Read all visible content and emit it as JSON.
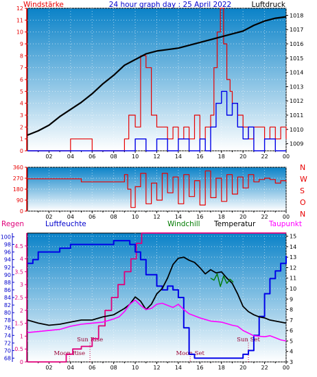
{
  "header": {
    "left": "Windstärke",
    "center": "24 hour graph day : 25 April 2022",
    "right": "Luftdruck"
  },
  "legend": {
    "regen": "Regen",
    "luftfeuchte": "Luftfeuchte",
    "windchill": "Windchill",
    "temperatur": "Temperatur",
    "taupunkt": "Taupunkt"
  },
  "wind_dir_labels": [
    "N",
    "W",
    "S",
    "O",
    "N"
  ],
  "colors": {
    "red": "#e80000",
    "blue": "#0000e8",
    "black": "#000000",
    "green": "#007a00",
    "magenta": "#ff00ff",
    "deep_magenta": "#e0007a",
    "axis_left": "#e80000",
    "axis_humidity": "#0000cc",
    "axis_right": "#000000",
    "panel_top": "#0a82c8",
    "panel_bottom": "#ffffff"
  },
  "chart_data": [
    {
      "id": "wind-pressure",
      "type": "line",
      "title": "24 hour graph day : 25 April 2022",
      "left_axis": {
        "label": "Windstärke",
        "range": [
          0,
          12
        ],
        "ticks": [
          "0",
          "1",
          "2",
          "3",
          "4",
          "5",
          "6",
          "7",
          "8",
          "9",
          "10",
          "11",
          "12"
        ]
      },
      "right_axis": {
        "label": "Luftdruck",
        "range": [
          1008.5,
          1018.5
        ],
        "ticks": [
          "1009",
          "1010",
          "1011",
          "1012",
          "1013",
          "1014",
          "1015",
          "1016",
          "1017",
          "1018"
        ]
      },
      "x_axis": {
        "range": [
          0,
          24
        ],
        "ticks": [
          "02",
          "04",
          "06",
          "08",
          "10",
          "12",
          "14",
          "16",
          "18",
          "20",
          "22",
          "00"
        ]
      },
      "series": [
        {
          "name": "Luftdruck",
          "color": "black",
          "x": [
            0,
            1,
            2,
            3,
            4,
            5,
            6,
            7,
            8,
            9,
            10,
            11,
            12,
            13,
            14,
            15,
            16,
            17,
            18,
            19,
            20,
            21,
            22,
            23,
            24
          ],
          "y": [
            1009.6,
            1009.9,
            1010.3,
            1010.9,
            1011.4,
            1011.9,
            1012.5,
            1013.2,
            1013.8,
            1014.5,
            1014.9,
            1015.3,
            1015.5,
            1015.6,
            1015.7,
            1015.9,
            1016.1,
            1016.3,
            1016.5,
            1016.7,
            1016.9,
            1017.3,
            1017.6,
            1017.8,
            1017.9
          ]
        },
        {
          "name": "Windböen",
          "color": "red",
          "x": [
            0,
            2,
            4,
            6,
            8,
            9,
            9.4,
            10,
            10.5,
            11,
            11.5,
            12,
            12.5,
            13,
            13.5,
            14,
            14.5,
            15,
            15.5,
            16,
            16.5,
            17,
            17.3,
            17.6,
            17.9,
            18.2,
            18.5,
            18.8,
            19,
            19.5,
            20,
            20.5,
            21,
            21.5,
            22,
            22.5,
            23,
            23.5,
            24
          ],
          "y": [
            0,
            0,
            1,
            0,
            0,
            1,
            3,
            2,
            8,
            7,
            3,
            2,
            2,
            1,
            2,
            1,
            2,
            1,
            3,
            1,
            2,
            3,
            7,
            10,
            12,
            9,
            6,
            5,
            4,
            3,
            2,
            1,
            2,
            2,
            1,
            2,
            1,
            2,
            1
          ]
        },
        {
          "name": "Windmittel",
          "color": "blue",
          "x": [
            0,
            9,
            10,
            11,
            12,
            13,
            14,
            15,
            16,
            16.5,
            17,
            17.5,
            18,
            18.5,
            19,
            19.5,
            20,
            20.5,
            21,
            22,
            23,
            24
          ],
          "y": [
            0,
            0,
            1,
            0,
            1,
            0,
            1,
            0,
            1,
            0,
            2,
            4,
            5,
            3,
            4,
            2,
            1,
            2,
            0,
            1,
            0,
            0
          ]
        }
      ]
    },
    {
      "id": "wind-direction",
      "type": "line",
      "left_axis": {
        "range": [
          0,
          360
        ],
        "ticks": [
          "0",
          "90",
          "180",
          "270",
          "360"
        ]
      },
      "right_labels": [
        "N",
        "W",
        "S",
        "O",
        "N"
      ],
      "x_axis": {
        "range": [
          0,
          24
        ],
        "ticks": [
          "02",
          "04",
          "06",
          "08",
          "10",
          "12",
          "14",
          "16",
          "18",
          "20",
          "22",
          "00"
        ]
      },
      "series": [
        {
          "name": "Windrichtung",
          "color": "red",
          "x": [
            0,
            4.5,
            5,
            8.5,
            9,
            9.3,
            9.6,
            10,
            10.5,
            11,
            11.5,
            12,
            12.5,
            13,
            13.5,
            14,
            14.5,
            15,
            15.5,
            16,
            16.5,
            17,
            17.5,
            18,
            18.5,
            19,
            19.5,
            20,
            20.5,
            21,
            21.5,
            22,
            22.5,
            23,
            23.5,
            24
          ],
          "y": [
            265,
            265,
            240,
            240,
            300,
            180,
            30,
            200,
            310,
            60,
            230,
            90,
            310,
            150,
            280,
            60,
            300,
            120,
            250,
            50,
            330,
            110,
            270,
            80,
            300,
            140,
            280,
            190,
            300,
            240,
            260,
            270,
            260,
            230,
            250,
            240
          ]
        }
      ]
    },
    {
      "id": "climate",
      "type": "line",
      "left_axis_regen": {
        "label": "Regen",
        "range": [
          0,
          5
        ],
        "ticks": [
          "0",
          "0.5",
          "1",
          "1.5",
          "2",
          "2.5",
          "3",
          "3.5",
          "4",
          "4.5"
        ]
      },
      "left_axis_humidity": {
        "label": "Luftfeuchte",
        "range": [
          67,
          101
        ],
        "ticks": [
          "68",
          "70",
          "72",
          "74",
          "76",
          "78",
          "80",
          "82",
          "84",
          "86",
          "88",
          "90",
          "92",
          "94",
          "96",
          "98",
          "100"
        ]
      },
      "right_axis": {
        "label": "Temperatur",
        "range": [
          3,
          15.3
        ],
        "ticks": [
          "3",
          "4",
          "5",
          "6",
          "7",
          "8",
          "9",
          "10",
          "11",
          "12",
          "13",
          "14",
          "15"
        ]
      },
      "x_axis": {
        "range": [
          0,
          24
        ],
        "ticks": [
          "02",
          "04",
          "06",
          "08",
          "10",
          "12",
          "14",
          "16",
          "18",
          "20",
          "22",
          "00"
        ]
      },
      "annotations": [
        {
          "label": "Sun Rise",
          "x": 5.8
        },
        {
          "label": "Moon Rise",
          "x": 3.9
        },
        {
          "label": "Moon Set",
          "x": 15.1
        },
        {
          "label": "Sun Set",
          "x": 20.5
        }
      ],
      "series": [
        {
          "name": "Regen",
          "color": "deep_magenta",
          "axis": "regen",
          "x": [
            0,
            3,
            3.6,
            4.2,
            5,
            6,
            6.6,
            7.2,
            7.8,
            8.4,
            9,
            9.6,
            10.1,
            10.6,
            11.2,
            24
          ],
          "y": [
            0,
            0,
            0.3,
            0.5,
            0.6,
            0.9,
            1.4,
            2.0,
            2.5,
            3.0,
            3.5,
            4.0,
            4.6,
            5.0,
            5.0,
            5.0
          ]
        },
        {
          "name": "Luftfeuchte",
          "color": "blue",
          "axis": "humidity",
          "x": [
            0,
            0.5,
            1,
            2,
            3,
            4,
            5,
            6,
            7,
            8,
            8.5,
            9,
            9.5,
            10,
            10.5,
            11,
            12,
            12.5,
            13,
            13.5,
            14,
            14.5,
            15,
            15.5,
            16,
            17,
            18,
            19,
            19.5,
            20,
            20.5,
            21,
            21.5,
            22,
            22.5,
            23,
            23.5,
            24
          ],
          "y": [
            93,
            94,
            96,
            96,
            97,
            98,
            98,
            98,
            98,
            99,
            99,
            99,
            98,
            96,
            94,
            90,
            87,
            86,
            87,
            86,
            84,
            76,
            69,
            68,
            68,
            68,
            68,
            68,
            68,
            69,
            70,
            74,
            79,
            85,
            89,
            91,
            93,
            95
          ]
        },
        {
          "name": "Temperatur",
          "color": "black",
          "axis": "temp",
          "x": [
            0,
            1,
            2,
            3,
            4,
            5,
            6,
            7,
            8,
            8.5,
            9,
            9.5,
            10,
            10.5,
            11,
            11.5,
            12,
            12.5,
            13,
            13.5,
            14,
            14.5,
            15,
            15.5,
            16,
            16.5,
            17,
            17.5,
            18,
            18.5,
            19,
            19.5,
            20,
            20.5,
            21,
            21.5,
            22,
            22.5,
            23,
            23.5,
            24
          ],
          "y": [
            7.0,
            6.7,
            6.5,
            6.6,
            6.8,
            7.0,
            7.0,
            7.3,
            7.5,
            7.8,
            8.1,
            8.5,
            9.2,
            8.8,
            8.0,
            8.5,
            9.5,
            10.0,
            11.0,
            12.3,
            12.9,
            13.0,
            12.7,
            12.5,
            12.0,
            11.4,
            11.8,
            11.5,
            11.6,
            11.0,
            10.5,
            9.5,
            8.3,
            7.8,
            7.5,
            7.3,
            7.2,
            7.0,
            6.9,
            6.8,
            6.7
          ]
        },
        {
          "name": "Windchill",
          "color": "green",
          "axis": "temp",
          "x": [
            17,
            17.3,
            17.6,
            17.9,
            18.2,
            18.5,
            18.8,
            19.1
          ],
          "y": [
            11.0,
            10.8,
            11.4,
            10.2,
            11.2,
            10.5,
            10.9,
            10.6
          ]
        },
        {
          "name": "Taupunkt",
          "color": "magenta",
          "axis": "temp",
          "x": [
            0,
            1,
            2,
            3,
            4,
            5,
            6,
            7,
            8,
            8.5,
            9,
            9.5,
            10,
            10.5,
            11,
            11.5,
            12,
            12.5,
            13,
            13.5,
            14,
            14.5,
            15,
            15.5,
            16,
            17,
            18,
            19,
            19.5,
            20,
            21,
            22,
            22.5,
            23,
            23.5,
            24
          ],
          "y": [
            5.8,
            5.9,
            6.0,
            6.1,
            6.4,
            6.6,
            6.7,
            6.8,
            7.1,
            7.3,
            7.8,
            8.5,
            8.9,
            8.4,
            8.0,
            8.1,
            8.5,
            8.6,
            8.4,
            8.2,
            8.5,
            8.0,
            7.6,
            7.4,
            7.2,
            6.9,
            6.8,
            6.5,
            6.4,
            6.0,
            5.5,
            5.4,
            5.5,
            5.3,
            5.1,
            5.0
          ]
        }
      ]
    }
  ]
}
